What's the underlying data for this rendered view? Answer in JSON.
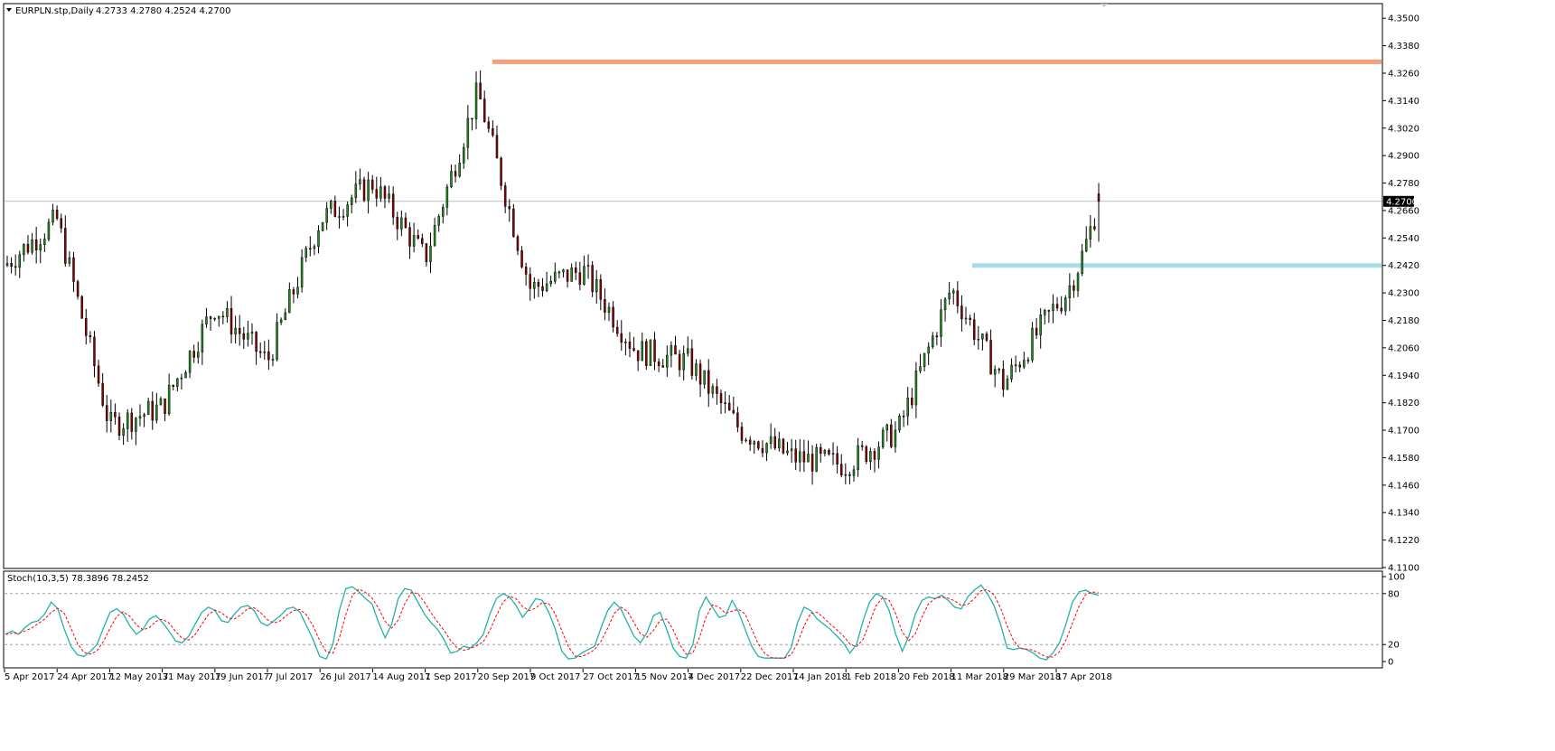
{
  "header": {
    "symbol_label": "EURPLN.stp,Daily",
    "ohlc_label": "4.2733 4.2780 4.2524 4.2700"
  },
  "indicator": {
    "label": "Stoch(10,3,5) 78.3896 78.2452",
    "levels": [
      0,
      20,
      80,
      100
    ],
    "level_labels": [
      "0",
      "20",
      "80",
      "100"
    ]
  },
  "chart_data": {
    "type": "candlestick",
    "price_axis": {
      "ylim": [
        4.11,
        4.356
      ],
      "tick_labels": [
        "4.1100",
        "4.1220",
        "4.1340",
        "4.1460",
        "4.1580",
        "4.1700",
        "4.1820",
        "4.1940",
        "4.2060",
        "4.2180",
        "4.2300",
        "4.2420",
        "4.2540",
        "4.2660",
        "4.2780",
        "4.2900",
        "4.3020",
        "4.3140",
        "4.3260",
        "4.3380",
        "4.3500"
      ]
    },
    "current_price": {
      "value": 4.27,
      "label": "4.2700"
    },
    "date_labels": [
      "5 Apr 2017",
      "24 Apr 2017",
      "12 May 2017",
      "31 May 2017",
      "19 Jun 2017",
      "7 Jul 2017",
      "26 Jul 2017",
      "14 Aug 2017",
      "1 Sep 2017",
      "20 Sep 2017",
      "9 Oct 2017",
      "27 Oct 2017",
      "15 Nov 2017",
      "4 Dec 2017",
      "22 Dec 2017",
      "14 Jan 2018",
      "1 Feb 2018",
      "20 Feb 2018",
      "11 Mar 2018",
      "29 Mar 2018",
      "17 Apr 2018"
    ],
    "key_points": [
      {
        "date": "5 Apr 2017",
        "value": 4.242
      },
      {
        "date": "24 Apr 2017",
        "value": 4.262
      },
      {
        "date": "12 May 2017",
        "value": 4.172
      },
      {
        "date": "31 May 2017",
        "value": 4.18
      },
      {
        "date": "19 Jun 2017",
        "value": 4.224
      },
      {
        "date": "7 Jul 2017",
        "value": 4.2
      },
      {
        "date": "26 Jul 2017",
        "value": 4.262
      },
      {
        "date": "14 Aug 2017",
        "value": 4.278
      },
      {
        "date": "1 Sep 2017",
        "value": 4.245
      },
      {
        "date": "20 Sep 2017",
        "value": 4.318
      },
      {
        "date": "9 Oct 2017",
        "value": 4.232
      },
      {
        "date": "27 Oct 2017",
        "value": 4.24
      },
      {
        "date": "15 Nov 2017",
        "value": 4.205
      },
      {
        "date": "4 Dec 2017",
        "value": 4.2
      },
      {
        "date": "22 Dec 2017",
        "value": 4.17
      },
      {
        "date": "14 Jan 2018",
        "value": 4.158
      },
      {
        "date": "1 Feb 2018",
        "value": 4.155
      },
      {
        "date": "20 Feb 2018",
        "value": 4.17
      },
      {
        "date": "11 Mar 2018",
        "value": 4.232
      },
      {
        "date": "29 Mar 2018",
        "value": 4.19
      },
      {
        "date": "17 Apr 2018",
        "value": 4.225
      }
    ],
    "last_candle": {
      "open": 4.2733,
      "high": 4.278,
      "low": 4.2524,
      "close": 4.27
    },
    "resistance_line": {
      "value": 4.331,
      "color": "#f5a07a"
    },
    "support_line": {
      "value": 4.242,
      "color": "#a8dce6"
    },
    "stochastic": {
      "main_color": "#20b2aa",
      "signal_color": "#ff0000",
      "main_last": 78.3896,
      "signal_last": 78.2452,
      "main_values": [
        32,
        36,
        32,
        40,
        46,
        48,
        56,
        70,
        62,
        38,
        18,
        8,
        6,
        12,
        20,
        40,
        58,
        62,
        56,
        42,
        32,
        38,
        50,
        54,
        46,
        36,
        24,
        22,
        30,
        44,
        58,
        64,
        60,
        48,
        46,
        56,
        64,
        66,
        60,
        46,
        42,
        48,
        54,
        62,
        64,
        58,
        42,
        26,
        6,
        3,
        20,
        60,
        86,
        88,
        82,
        74,
        68,
        46,
        28,
        44,
        74,
        86,
        84,
        70,
        56,
        46,
        38,
        26,
        10,
        12,
        18,
        16,
        22,
        32,
        56,
        74,
        80,
        76,
        66,
        52,
        62,
        74,
        72,
        58,
        38,
        12,
        3,
        4,
        10,
        14,
        18,
        40,
        60,
        70,
        62,
        46,
        30,
        22,
        34,
        54,
        58,
        38,
        16,
        6,
        4,
        20,
        60,
        76,
        64,
        52,
        54,
        72,
        58,
        38,
        18,
        6,
        4,
        4,
        4,
        4,
        16,
        46,
        64,
        60,
        50,
        44,
        38,
        30,
        22,
        10,
        20,
        48,
        70,
        80,
        76,
        60,
        32,
        12,
        30,
        56,
        72,
        76,
        74,
        78,
        72,
        64,
        62,
        76,
        84,
        90,
        80,
        66,
        44,
        16,
        14,
        16,
        14,
        10,
        4,
        2,
        10,
        22,
        44,
        70,
        82,
        84,
        80,
        78
      ]
    }
  }
}
